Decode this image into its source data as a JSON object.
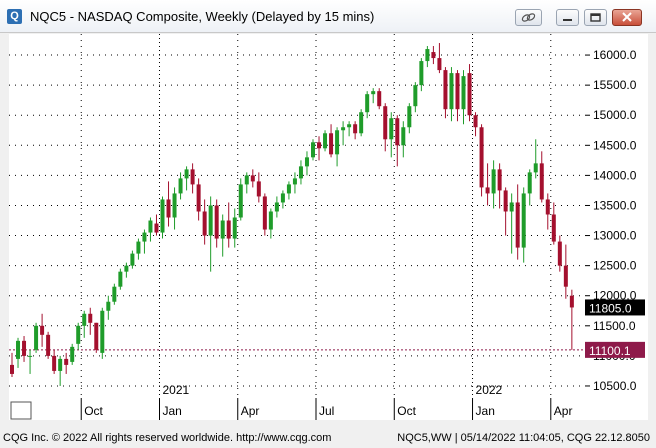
{
  "window": {
    "title": "NQC5 - NASDAQ Composite, Weekly (Delayed by 15 mins)",
    "icon": "chart-window-icon",
    "controls": [
      "link-icon",
      "minimize-icon",
      "restore-icon",
      "close-icon"
    ]
  },
  "status": {
    "left": "CQG Inc. © 2022 All rights reserved worldwide. http://www.cqg.com",
    "right": "NQC5,WW | 05/14/2022 11:04:05, CQG 22.12.8050"
  },
  "colors": {
    "up": "#1f9c2a",
    "down": "#a4102e",
    "grid": "#000000",
    "last_box": "#000000",
    "ref_box": "#8e1a4a",
    "ref_line": "#8e1a4a"
  },
  "chart_data": {
    "type": "candlestick",
    "title": "NASDAQ Composite, Weekly",
    "symbol": "NQC5",
    "ylim": [
      10300,
      16350
    ],
    "yticks": [
      10500,
      11000,
      11500,
      12000,
      12500,
      13000,
      13500,
      14000,
      14500,
      15000,
      15500,
      16000
    ],
    "ytick_labels": [
      "10500.0",
      "11000.0",
      "11500.0",
      "12000.0",
      "12500.0",
      "13000.0",
      "13500.0",
      "14000.0",
      "14500.0",
      "15000.0",
      "15500.0",
      "16000.0"
    ],
    "month_labels": [
      "Oct",
      "Jan",
      "Apr",
      "Jul",
      "Oct",
      "Jan",
      "Apr"
    ],
    "month_starts": [
      12,
      25,
      38,
      51,
      64,
      77,
      90
    ],
    "year_labels": [
      "2021",
      "2022"
    ],
    "year_starts": [
      25,
      77
    ],
    "last_price": "11805.0",
    "reference_price": "11100.1",
    "grid": true,
    "candles": [
      {
        "o": 10850,
        "h": 11050,
        "l": 10650,
        "c": 10700
      },
      {
        "o": 10950,
        "h": 11300,
        "l": 10800,
        "c": 11250
      },
      {
        "o": 11250,
        "h": 11330,
        "l": 10900,
        "c": 11000
      },
      {
        "o": 11000,
        "h": 11100,
        "l": 10700,
        "c": 11000
      },
      {
        "o": 11100,
        "h": 11550,
        "l": 11050,
        "c": 11500
      },
      {
        "o": 11500,
        "h": 11700,
        "l": 11150,
        "c": 11350
      },
      {
        "o": 11350,
        "h": 11400,
        "l": 10950,
        "c": 11000
      },
      {
        "o": 11000,
        "h": 11100,
        "l": 10700,
        "c": 10750
      },
      {
        "o": 10750,
        "h": 11000,
        "l": 10500,
        "c": 10950
      },
      {
        "o": 10950,
        "h": 11050,
        "l": 10700,
        "c": 10850
      },
      {
        "o": 10900,
        "h": 11200,
        "l": 10850,
        "c": 11150
      },
      {
        "o": 11200,
        "h": 11550,
        "l": 11100,
        "c": 11500
      },
      {
        "o": 11500,
        "h": 11750,
        "l": 11300,
        "c": 11700
      },
      {
        "o": 11700,
        "h": 11800,
        "l": 11350,
        "c": 11550
      },
      {
        "o": 11550,
        "h": 11550,
        "l": 11050,
        "c": 11100
      },
      {
        "o": 11050,
        "h": 11800,
        "l": 10950,
        "c": 11750
      },
      {
        "o": 11750,
        "h": 12000,
        "l": 11600,
        "c": 11900
      },
      {
        "o": 11900,
        "h": 12200,
        "l": 11850,
        "c": 12150
      },
      {
        "o": 12150,
        "h": 12450,
        "l": 12100,
        "c": 12400
      },
      {
        "o": 12400,
        "h": 12550,
        "l": 12300,
        "c": 12500
      },
      {
        "o": 12500,
        "h": 12750,
        "l": 12450,
        "c": 12700
      },
      {
        "o": 12700,
        "h": 12950,
        "l": 12600,
        "c": 12900
      },
      {
        "o": 12900,
        "h": 13100,
        "l": 12700,
        "c": 13050
      },
      {
        "o": 13050,
        "h": 13300,
        "l": 12900,
        "c": 13250
      },
      {
        "o": 13200,
        "h": 13350,
        "l": 13000,
        "c": 13050
      },
      {
        "o": 13050,
        "h": 13650,
        "l": 12950,
        "c": 13600
      },
      {
        "o": 13600,
        "h": 13900,
        "l": 13150,
        "c": 13300
      },
      {
        "o": 13300,
        "h": 13800,
        "l": 13100,
        "c": 13700
      },
      {
        "o": 13700,
        "h": 14050,
        "l": 13600,
        "c": 13950
      },
      {
        "o": 13950,
        "h": 14150,
        "l": 13750,
        "c": 14100
      },
      {
        "o": 14100,
        "h": 14200,
        "l": 13700,
        "c": 13850
      },
      {
        "o": 13850,
        "h": 13950,
        "l": 13250,
        "c": 13400
      },
      {
        "o": 13400,
        "h": 13600,
        "l": 12850,
        "c": 13000
      },
      {
        "o": 13000,
        "h": 13650,
        "l": 12400,
        "c": 13500
      },
      {
        "o": 13500,
        "h": 13600,
        "l": 12800,
        "c": 12950
      },
      {
        "o": 12950,
        "h": 13350,
        "l": 12650,
        "c": 13250
      },
      {
        "o": 13250,
        "h": 13550,
        "l": 12800,
        "c": 12950
      },
      {
        "o": 12950,
        "h": 13450,
        "l": 12800,
        "c": 13300
      },
      {
        "o": 13300,
        "h": 13950,
        "l": 13250,
        "c": 13850
      },
      {
        "o": 13850,
        "h": 14050,
        "l": 13700,
        "c": 14000
      },
      {
        "o": 14000,
        "h": 14100,
        "l": 13800,
        "c": 13900
      },
      {
        "o": 13900,
        "h": 14050,
        "l": 13550,
        "c": 13650
      },
      {
        "o": 13650,
        "h": 13700,
        "l": 13000,
        "c": 13100
      },
      {
        "o": 13100,
        "h": 13450,
        "l": 12950,
        "c": 13400
      },
      {
        "o": 13400,
        "h": 13650,
        "l": 13300,
        "c": 13550
      },
      {
        "o": 13550,
        "h": 13750,
        "l": 13450,
        "c": 13700
      },
      {
        "o": 13700,
        "h": 13900,
        "l": 13600,
        "c": 13850
      },
      {
        "o": 13850,
        "h": 14050,
        "l": 13700,
        "c": 13950
      },
      {
        "o": 13950,
        "h": 14250,
        "l": 13850,
        "c": 14150
      },
      {
        "o": 14150,
        "h": 14400,
        "l": 14000,
        "c": 14300
      },
      {
        "o": 14300,
        "h": 14600,
        "l": 14250,
        "c": 14550
      },
      {
        "o": 14550,
        "h": 14650,
        "l": 14250,
        "c": 14450
      },
      {
        "o": 14450,
        "h": 14750,
        "l": 14400,
        "c": 14700
      },
      {
        "o": 14700,
        "h": 14850,
        "l": 14300,
        "c": 14350
      },
      {
        "o": 14350,
        "h": 14800,
        "l": 14150,
        "c": 14750
      },
      {
        "o": 14750,
        "h": 14900,
        "l": 14500,
        "c": 14800
      },
      {
        "o": 14800,
        "h": 14900,
        "l": 14650,
        "c": 14850
      },
      {
        "o": 14850,
        "h": 14900,
        "l": 14600,
        "c": 14700
      },
      {
        "o": 14700,
        "h": 15100,
        "l": 14650,
        "c": 15050
      },
      {
        "o": 15050,
        "h": 15400,
        "l": 14950,
        "c": 15350
      },
      {
        "o": 15350,
        "h": 15450,
        "l": 15200,
        "c": 15400
      },
      {
        "o": 15400,
        "h": 15450,
        "l": 15100,
        "c": 15150
      },
      {
        "o": 15150,
        "h": 15200,
        "l": 14400,
        "c": 14600
      },
      {
        "o": 14600,
        "h": 15050,
        "l": 14300,
        "c": 14950
      },
      {
        "o": 14950,
        "h": 15000,
        "l": 14150,
        "c": 14500
      },
      {
        "o": 14500,
        "h": 14900,
        "l": 14300,
        "c": 14800
      },
      {
        "o": 14800,
        "h": 15200,
        "l": 14700,
        "c": 15150
      },
      {
        "o": 15150,
        "h": 15550,
        "l": 15050,
        "c": 15500
      },
      {
        "o": 15500,
        "h": 15950,
        "l": 15400,
        "c": 15900
      },
      {
        "o": 15900,
        "h": 16150,
        "l": 15800,
        "c": 16100
      },
      {
        "o": 16050,
        "h": 16150,
        "l": 15850,
        "c": 15950
      },
      {
        "o": 15950,
        "h": 16200,
        "l": 15700,
        "c": 15750
      },
      {
        "o": 15750,
        "h": 15800,
        "l": 14950,
        "c": 15100
      },
      {
        "o": 15100,
        "h": 15800,
        "l": 14900,
        "c": 15700
      },
      {
        "o": 15700,
        "h": 15750,
        "l": 14900,
        "c": 15100
      },
      {
        "o": 15100,
        "h": 15750,
        "l": 14850,
        "c": 15650
      },
      {
        "o": 15700,
        "h": 15850,
        "l": 14900,
        "c": 15000
      },
      {
        "o": 15000,
        "h": 15050,
        "l": 14650,
        "c": 14800
      },
      {
        "o": 14800,
        "h": 14850,
        "l": 13650,
        "c": 13800
      },
      {
        "o": 13800,
        "h": 14200,
        "l": 13500,
        "c": 13700
      },
      {
        "o": 13700,
        "h": 14250,
        "l": 13450,
        "c": 14100
      },
      {
        "o": 14100,
        "h": 14200,
        "l": 13450,
        "c": 13750
      },
      {
        "o": 13750,
        "h": 13800,
        "l": 13000,
        "c": 13400
      },
      {
        "o": 13400,
        "h": 13700,
        "l": 12700,
        "c": 13550
      },
      {
        "o": 13550,
        "h": 13850,
        "l": 12600,
        "c": 12800
      },
      {
        "o": 12800,
        "h": 13800,
        "l": 12550,
        "c": 13700
      },
      {
        "o": 13700,
        "h": 14100,
        "l": 13500,
        "c": 14050
      },
      {
        "o": 14050,
        "h": 14600,
        "l": 13950,
        "c": 14200
      },
      {
        "o": 14200,
        "h": 14400,
        "l": 13550,
        "c": 13600
      },
      {
        "o": 13600,
        "h": 13700,
        "l": 13100,
        "c": 13350
      },
      {
        "o": 13350,
        "h": 13550,
        "l": 12850,
        "c": 12900
      },
      {
        "o": 12900,
        "h": 13000,
        "l": 12400,
        "c": 12500
      },
      {
        "o": 12500,
        "h": 12850,
        "l": 11950,
        "c": 12150
      },
      {
        "o": 12000,
        "h": 12100,
        "l": 11100,
        "c": 11805
      }
    ]
  }
}
